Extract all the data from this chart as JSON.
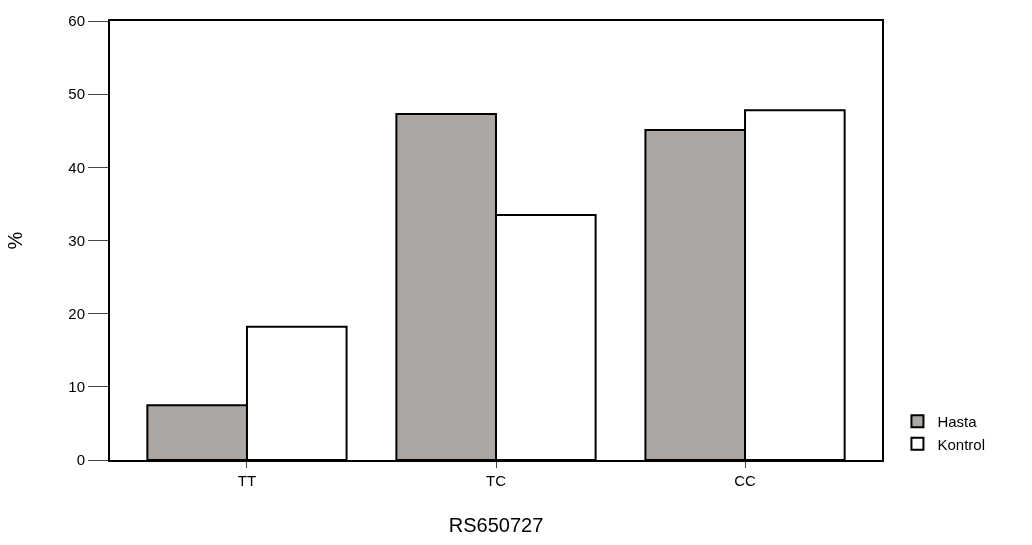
{
  "chart_data": {
    "type": "bar",
    "xlabel": "RS650727",
    "ylabel": "%",
    "categories": [
      "TT",
      "TC",
      "CC"
    ],
    "series": [
      {
        "name": "Hasta",
        "color": "#aca7a3",
        "values": [
          7.5,
          47.3,
          45.1
        ]
      },
      {
        "name": "Kontrol",
        "color": "#ffffff",
        "values": [
          18.2,
          33.5,
          47.8
        ]
      }
    ],
    "ylim": [
      0,
      60
    ],
    "yticks": [
      0,
      10,
      20,
      30,
      40,
      50,
      60
    ],
    "legend": "bottom right"
  }
}
